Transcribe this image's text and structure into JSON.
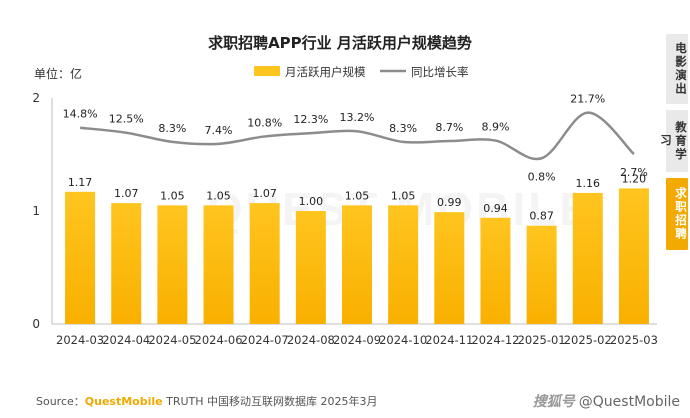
{
  "chart_data": {
    "type": "bar",
    "title": "求职招聘APP行业 月活跃用户规模趋势",
    "unit_label": "单位：亿",
    "categories": [
      "2024-03",
      "2024-04",
      "2024-05",
      "2024-06",
      "2024-07",
      "2024-08",
      "2024-09",
      "2024-10",
      "2024-11",
      "2024-12",
      "2025-01",
      "2025-02",
      "2025-03"
    ],
    "series": [
      {
        "name": "月活跃用户规模",
        "type": "bar",
        "values": [
          1.17,
          1.07,
          1.05,
          1.05,
          1.07,
          1.0,
          1.05,
          1.05,
          0.99,
          0.94,
          0.87,
          1.16,
          1.2
        ]
      },
      {
        "name": "同比增长率",
        "type": "line",
        "values": [
          14.8,
          12.5,
          8.3,
          7.4,
          10.8,
          12.3,
          13.2,
          8.3,
          8.7,
          8.9,
          0.8,
          21.7,
          2.7
        ]
      }
    ],
    "bar_labels": [
      "1.17",
      "1.07",
      "1.05",
      "1.05",
      "1.07",
      "1.00",
      "1.05",
      "1.05",
      "0.99",
      "0.94",
      "0.87",
      "1.16",
      "1.20"
    ],
    "line_labels": [
      "14.8%",
      "12.5%",
      "8.3%",
      "7.4%",
      "10.8%",
      "12.3%",
      "13.2%",
      "8.3%",
      "8.7%",
      "8.9%",
      "0.8%",
      "21.7%",
      "2.7%"
    ],
    "ylim": [
      0,
      2
    ],
    "yticks": [
      "0",
      "1",
      "2"
    ],
    "legend_position": "top-center",
    "grid": false,
    "colors": {
      "bar_top": "#FFC51F",
      "bar_bottom": "#F9B000",
      "line": "#8c8c8c"
    }
  },
  "watermark": "QUEST MOBILE",
  "side_tabs": [
    {
      "label": "电影演出",
      "active": false
    },
    {
      "label": "教育学习",
      "active": false
    },
    {
      "label": "求职招聘",
      "active": true
    }
  ],
  "source": {
    "prefix": "Source：",
    "brand": "QuestMobile",
    "rest": " TRUTH 中国移动互联网数据库 2025年3月"
  },
  "credit": {
    "logo": "搜狐号",
    "handle": "@QuestMobile"
  }
}
